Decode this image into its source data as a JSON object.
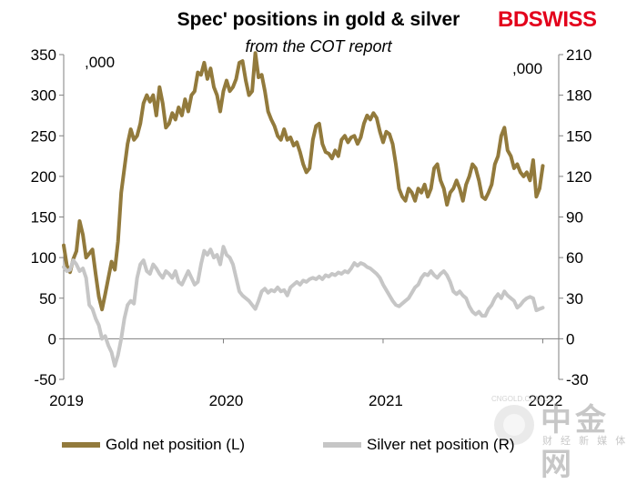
{
  "chart_data": {
    "type": "line",
    "title": "Spec' positions in gold & silver",
    "subtitle": "from the COT report",
    "left_unit": ",000",
    "right_unit": ",000",
    "y_left": {
      "min": -50,
      "max": 350,
      "ticks": [
        350,
        300,
        250,
        200,
        150,
        100,
        50,
        0,
        -50
      ]
    },
    "y_right": {
      "min": -30,
      "max": 210,
      "ticks": [
        210,
        180,
        150,
        120,
        90,
        60,
        30,
        0,
        -30
      ]
    },
    "x_range": [
      2019.0,
      2022.1
    ],
    "x_ticks": [
      {
        "value": 2019,
        "label": "2019"
      },
      {
        "value": 2020,
        "label": "2020"
      },
      {
        "value": 2021,
        "label": "2021"
      },
      {
        "value": 2022,
        "label": "2022"
      }
    ],
    "grid": false,
    "legend_position": "bottom",
    "series": [
      {
        "name": "Gold net position (L)",
        "axis": "left",
        "color": "#927a3c",
        "points": [
          [
            2019.0,
            115
          ],
          [
            2019.02,
            90
          ],
          [
            2019.04,
            82
          ],
          [
            2019.06,
            98
          ],
          [
            2019.08,
            108
          ],
          [
            2019.1,
            145
          ],
          [
            2019.12,
            128
          ],
          [
            2019.14,
            100
          ],
          [
            2019.16,
            105
          ],
          [
            2019.18,
            110
          ],
          [
            2019.2,
            80
          ],
          [
            2019.22,
            52
          ],
          [
            2019.24,
            36
          ],
          [
            2019.26,
            55
          ],
          [
            2019.28,
            75
          ],
          [
            2019.3,
            95
          ],
          [
            2019.32,
            85
          ],
          [
            2019.34,
            120
          ],
          [
            2019.36,
            180
          ],
          [
            2019.38,
            210
          ],
          [
            2019.4,
            240
          ],
          [
            2019.42,
            258
          ],
          [
            2019.44,
            245
          ],
          [
            2019.46,
            250
          ],
          [
            2019.48,
            265
          ],
          [
            2019.5,
            290
          ],
          [
            2019.52,
            300
          ],
          [
            2019.54,
            292
          ],
          [
            2019.56,
            300
          ],
          [
            2019.58,
            275
          ],
          [
            2019.6,
            310
          ],
          [
            2019.62,
            290
          ],
          [
            2019.64,
            260
          ],
          [
            2019.66,
            265
          ],
          [
            2019.68,
            278
          ],
          [
            2019.7,
            270
          ],
          [
            2019.72,
            285
          ],
          [
            2019.74,
            275
          ],
          [
            2019.76,
            295
          ],
          [
            2019.78,
            280
          ],
          [
            2019.8,
            300
          ],
          [
            2019.82,
            305
          ],
          [
            2019.84,
            328
          ],
          [
            2019.86,
            325
          ],
          [
            2019.88,
            340
          ],
          [
            2019.9,
            320
          ],
          [
            2019.92,
            333
          ],
          [
            2019.94,
            310
          ],
          [
            2019.96,
            300
          ],
          [
            2019.98,
            280
          ],
          [
            2020.0,
            305
          ],
          [
            2020.02,
            318
          ],
          [
            2020.04,
            305
          ],
          [
            2020.06,
            310
          ],
          [
            2020.08,
            320
          ],
          [
            2020.1,
            340
          ],
          [
            2020.12,
            342
          ],
          [
            2020.14,
            318
          ],
          [
            2020.16,
            300
          ],
          [
            2020.18,
            305
          ],
          [
            2020.2,
            352
          ],
          [
            2020.22,
            322
          ],
          [
            2020.24,
            325
          ],
          [
            2020.26,
            305
          ],
          [
            2020.28,
            280
          ],
          [
            2020.3,
            270
          ],
          [
            2020.32,
            262
          ],
          [
            2020.34,
            250
          ],
          [
            2020.36,
            245
          ],
          [
            2020.38,
            258
          ],
          [
            2020.4,
            245
          ],
          [
            2020.42,
            248
          ],
          [
            2020.44,
            238
          ],
          [
            2020.46,
            242
          ],
          [
            2020.48,
            230
          ],
          [
            2020.5,
            215
          ],
          [
            2020.52,
            205
          ],
          [
            2020.54,
            210
          ],
          [
            2020.56,
            245
          ],
          [
            2020.58,
            262
          ],
          [
            2020.6,
            265
          ],
          [
            2020.62,
            240
          ],
          [
            2020.64,
            230
          ],
          [
            2020.66,
            228
          ],
          [
            2020.68,
            222
          ],
          [
            2020.7,
            232
          ],
          [
            2020.72,
            225
          ],
          [
            2020.74,
            245
          ],
          [
            2020.76,
            250
          ],
          [
            2020.78,
            242
          ],
          [
            2020.8,
            248
          ],
          [
            2020.82,
            250
          ],
          [
            2020.84,
            240
          ],
          [
            2020.86,
            248
          ],
          [
            2020.88,
            265
          ],
          [
            2020.9,
            275
          ],
          [
            2020.92,
            270
          ],
          [
            2020.94,
            278
          ],
          [
            2020.96,
            272
          ],
          [
            2020.98,
            255
          ],
          [
            2021.0,
            242
          ],
          [
            2021.02,
            255
          ],
          [
            2021.04,
            252
          ],
          [
            2021.06,
            240
          ],
          [
            2021.08,
            215
          ],
          [
            2021.1,
            185
          ],
          [
            2021.12,
            175
          ],
          [
            2021.14,
            170
          ],
          [
            2021.16,
            185
          ],
          [
            2021.18,
            180
          ],
          [
            2021.2,
            170
          ],
          [
            2021.22,
            185
          ],
          [
            2021.24,
            180
          ],
          [
            2021.26,
            190
          ],
          [
            2021.28,
            175
          ],
          [
            2021.3,
            185
          ],
          [
            2021.32,
            210
          ],
          [
            2021.34,
            215
          ],
          [
            2021.36,
            195
          ],
          [
            2021.38,
            185
          ],
          [
            2021.4,
            165
          ],
          [
            2021.42,
            180
          ],
          [
            2021.44,
            185
          ],
          [
            2021.46,
            195
          ],
          [
            2021.48,
            185
          ],
          [
            2021.5,
            170
          ],
          [
            2021.52,
            190
          ],
          [
            2021.54,
            200
          ],
          [
            2021.56,
            215
          ],
          [
            2021.58,
            210
          ],
          [
            2021.6,
            195
          ],
          [
            2021.62,
            175
          ],
          [
            2021.64,
            172
          ],
          [
            2021.66,
            180
          ],
          [
            2021.68,
            190
          ],
          [
            2021.7,
            215
          ],
          [
            2021.72,
            225
          ],
          [
            2021.74,
            250
          ],
          [
            2021.76,
            260
          ],
          [
            2021.78,
            232
          ],
          [
            2021.8,
            225
          ],
          [
            2021.82,
            210
          ],
          [
            2021.84,
            215
          ],
          [
            2021.86,
            205
          ],
          [
            2021.88,
            200
          ],
          [
            2021.9,
            205
          ],
          [
            2021.92,
            195
          ],
          [
            2021.94,
            220
          ],
          [
            2021.96,
            175
          ],
          [
            2021.98,
            185
          ],
          [
            2022.0,
            213
          ]
        ]
      },
      {
        "name": "Silver net position (R)",
        "axis": "right",
        "color": "#c6c6c6",
        "points": [
          [
            2019.0,
            53
          ],
          [
            2019.02,
            50
          ],
          [
            2019.04,
            51
          ],
          [
            2019.06,
            58
          ],
          [
            2019.08,
            55
          ],
          [
            2019.1,
            50
          ],
          [
            2019.12,
            52
          ],
          [
            2019.14,
            45
          ],
          [
            2019.16,
            25
          ],
          [
            2019.18,
            22
          ],
          [
            2019.2,
            15
          ],
          [
            2019.22,
            10
          ],
          [
            2019.24,
            0
          ],
          [
            2019.26,
            2
          ],
          [
            2019.28,
            -5
          ],
          [
            2019.3,
            -10
          ],
          [
            2019.32,
            -20
          ],
          [
            2019.34,
            -12
          ],
          [
            2019.36,
            0
          ],
          [
            2019.38,
            15
          ],
          [
            2019.4,
            25
          ],
          [
            2019.42,
            28
          ],
          [
            2019.44,
            26
          ],
          [
            2019.46,
            45
          ],
          [
            2019.48,
            55
          ],
          [
            2019.5,
            58
          ],
          [
            2019.52,
            50
          ],
          [
            2019.54,
            48
          ],
          [
            2019.56,
            55
          ],
          [
            2019.58,
            52
          ],
          [
            2019.6,
            48
          ],
          [
            2019.62,
            45
          ],
          [
            2019.64,
            50
          ],
          [
            2019.66,
            48
          ],
          [
            2019.68,
            45
          ],
          [
            2019.7,
            50
          ],
          [
            2019.72,
            42
          ],
          [
            2019.74,
            40
          ],
          [
            2019.76,
            45
          ],
          [
            2019.78,
            50
          ],
          [
            2019.8,
            45
          ],
          [
            2019.82,
            40
          ],
          [
            2019.84,
            42
          ],
          [
            2019.86,
            55
          ],
          [
            2019.88,
            65
          ],
          [
            2019.9,
            62
          ],
          [
            2019.92,
            66
          ],
          [
            2019.94,
            60
          ],
          [
            2019.96,
            62
          ],
          [
            2019.98,
            55
          ],
          [
            2020.0,
            68
          ],
          [
            2020.02,
            62
          ],
          [
            2020.04,
            60
          ],
          [
            2020.06,
            55
          ],
          [
            2020.08,
            45
          ],
          [
            2020.1,
            35
          ],
          [
            2020.12,
            32
          ],
          [
            2020.14,
            30
          ],
          [
            2020.16,
            28
          ],
          [
            2020.18,
            25
          ],
          [
            2020.2,
            22
          ],
          [
            2020.22,
            28
          ],
          [
            2020.24,
            35
          ],
          [
            2020.26,
            37
          ],
          [
            2020.28,
            34
          ],
          [
            2020.3,
            36
          ],
          [
            2020.32,
            35
          ],
          [
            2020.34,
            38
          ],
          [
            2020.36,
            35
          ],
          [
            2020.38,
            36
          ],
          [
            2020.4,
            32
          ],
          [
            2020.42,
            38
          ],
          [
            2020.44,
            40
          ],
          [
            2020.46,
            42
          ],
          [
            2020.48,
            40
          ],
          [
            2020.5,
            43
          ],
          [
            2020.52,
            42
          ],
          [
            2020.54,
            44
          ],
          [
            2020.56,
            45
          ],
          [
            2020.58,
            44
          ],
          [
            2020.6,
            46
          ],
          [
            2020.62,
            44
          ],
          [
            2020.64,
            47
          ],
          [
            2020.66,
            46
          ],
          [
            2020.68,
            48
          ],
          [
            2020.7,
            47
          ],
          [
            2020.72,
            49
          ],
          [
            2020.74,
            48
          ],
          [
            2020.76,
            50
          ],
          [
            2020.78,
            49
          ],
          [
            2020.8,
            52
          ],
          [
            2020.82,
            56
          ],
          [
            2020.84,
            54
          ],
          [
            2020.86,
            56
          ],
          [
            2020.88,
            55
          ],
          [
            2020.9,
            53
          ],
          [
            2020.92,
            52
          ],
          [
            2020.94,
            50
          ],
          [
            2020.96,
            48
          ],
          [
            2020.98,
            45
          ],
          [
            2021.0,
            40
          ],
          [
            2021.02,
            36
          ],
          [
            2021.04,
            32
          ],
          [
            2021.06,
            28
          ],
          [
            2021.08,
            25
          ],
          [
            2021.1,
            24
          ],
          [
            2021.12,
            26
          ],
          [
            2021.14,
            28
          ],
          [
            2021.16,
            30
          ],
          [
            2021.18,
            34
          ],
          [
            2021.2,
            38
          ],
          [
            2021.22,
            40
          ],
          [
            2021.24,
            45
          ],
          [
            2021.26,
            48
          ],
          [
            2021.28,
            47
          ],
          [
            2021.3,
            50
          ],
          [
            2021.32,
            47
          ],
          [
            2021.34,
            45
          ],
          [
            2021.36,
            48
          ],
          [
            2021.38,
            50
          ],
          [
            2021.4,
            47
          ],
          [
            2021.42,
            42
          ],
          [
            2021.44,
            35
          ],
          [
            2021.46,
            33
          ],
          [
            2021.48,
            35
          ],
          [
            2021.5,
            32
          ],
          [
            2021.52,
            30
          ],
          [
            2021.54,
            24
          ],
          [
            2021.56,
            20
          ],
          [
            2021.58,
            18
          ],
          [
            2021.6,
            20
          ],
          [
            2021.62,
            17
          ],
          [
            2021.64,
            17
          ],
          [
            2021.66,
            22
          ],
          [
            2021.68,
            25
          ],
          [
            2021.7,
            30
          ],
          [
            2021.72,
            33
          ],
          [
            2021.74,
            30
          ],
          [
            2021.76,
            35
          ],
          [
            2021.78,
            32
          ],
          [
            2021.8,
            30
          ],
          [
            2021.82,
            28
          ],
          [
            2021.84,
            23
          ],
          [
            2021.86,
            25
          ],
          [
            2021.88,
            28
          ],
          [
            2021.9,
            30
          ],
          [
            2021.92,
            31
          ],
          [
            2021.94,
            30
          ],
          [
            2021.96,
            21
          ],
          [
            2021.98,
            22
          ],
          [
            2022.0,
            23
          ]
        ]
      }
    ]
  },
  "logo": {
    "text_bd": "BD",
    "text_swiss": "SWISS"
  },
  "watermark": {
    "main": "中金网",
    "sub": "财 经 新 媒 体",
    "url": "CNGOLD.COM.CN"
  }
}
